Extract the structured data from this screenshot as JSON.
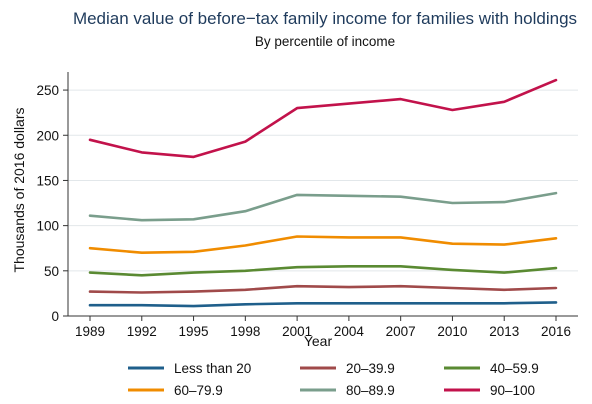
{
  "chart_data": {
    "type": "line",
    "title": "Median value of before−tax family income for families with holdings",
    "subtitle": "By percentile of income",
    "xlabel": "Year",
    "ylabel": "Thousands of 2016 dollars",
    "x": [
      1989,
      1992,
      1995,
      1998,
      2001,
      2004,
      2007,
      2010,
      2013,
      2016
    ],
    "x_ticks": [
      "1989",
      "1992",
      "1995",
      "1998",
      "2001",
      "2004",
      "2007",
      "2010",
      "2013",
      "2016"
    ],
    "ylim": [
      0,
      270
    ],
    "y_ticks": [
      0,
      50,
      100,
      150,
      200,
      250
    ],
    "grid": true,
    "legend_position": "bottom",
    "series": [
      {
        "name": "Less than 20",
        "color": "#1f5f8b",
        "values": [
          12,
          12,
          11,
          13,
          14,
          14,
          14,
          14,
          14,
          15
        ]
      },
      {
        "name": "20–39.9",
        "color": "#a04a4a",
        "values": [
          27,
          26,
          27,
          29,
          33,
          32,
          33,
          31,
          29,
          31
        ]
      },
      {
        "name": "40–59.9",
        "color": "#5a8a32",
        "values": [
          48,
          45,
          48,
          50,
          54,
          55,
          55,
          51,
          48,
          53
        ]
      },
      {
        "name": "60–79.9",
        "color": "#f08c00",
        "values": [
          75,
          70,
          71,
          78,
          88,
          87,
          87,
          80,
          79,
          86
        ]
      },
      {
        "name": "80–89.9",
        "color": "#7a9e8c",
        "values": [
          111,
          106,
          107,
          116,
          134,
          133,
          132,
          125,
          126,
          136
        ]
      },
      {
        "name": "90–100",
        "color": "#c2124b",
        "values": [
          195,
          181,
          176,
          193,
          230,
          235,
          240,
          228,
          237,
          261
        ]
      }
    ]
  }
}
